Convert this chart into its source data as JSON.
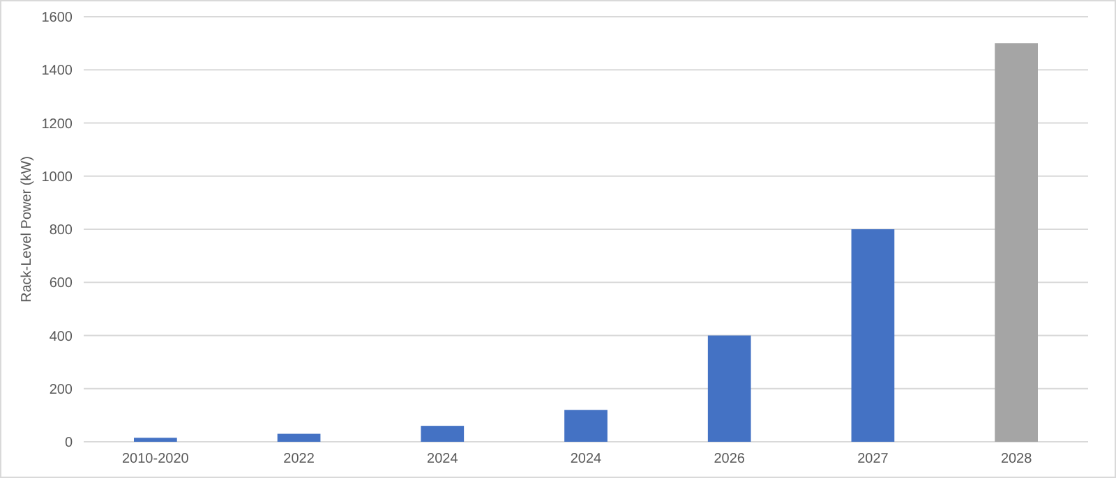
{
  "chart_data": {
    "type": "bar",
    "ylabel": "Rack-Level Power (kW)",
    "categories": [
      "2010-2020",
      "2022",
      "2024",
      "2024",
      "2026",
      "2027",
      "2028"
    ],
    "values": [
      15,
      30,
      60,
      120,
      400,
      800,
      1500
    ],
    "colors": [
      "#4472c4",
      "#4472c4",
      "#4472c4",
      "#4472c4",
      "#4472c4",
      "#4472c4",
      "#a5a5a5"
    ],
    "ylim": [
      0,
      1600
    ],
    "yticks": [
      0,
      200,
      400,
      600,
      800,
      1000,
      1200,
      1400,
      1600
    ],
    "grid": "y"
  }
}
